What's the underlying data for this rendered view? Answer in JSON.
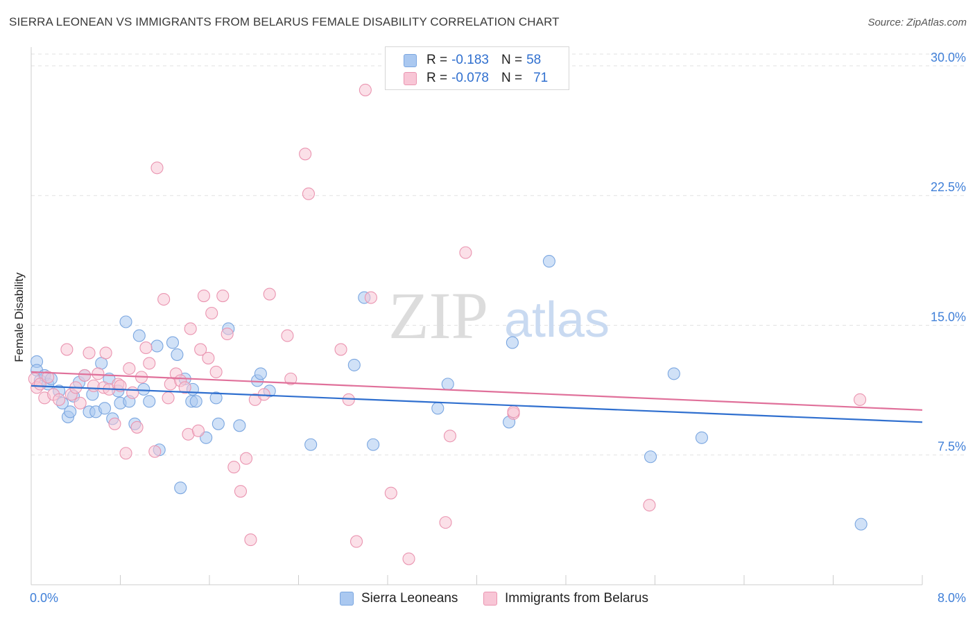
{
  "title": "SIERRA LEONEAN VS IMMIGRANTS FROM BELARUS FEMALE DISABILITY CORRELATION CHART",
  "source": "Source: ZipAtlas.com",
  "watermark": {
    "zip": "ZIP",
    "atlas": "atlas"
  },
  "legend_top": [
    {
      "r_label": "R =",
      "r_value": "-0.183",
      "n_label": "N =",
      "n_value": "58",
      "color": "#aac8f0",
      "border": "#7aa6e0"
    },
    {
      "r_label": "R =",
      "r_value": "-0.078",
      "n_label": "N =",
      "n_value": "71",
      "color": "#f8c6d6",
      "border": "#ea94b0"
    }
  ],
  "chart_data": {
    "type": "scatter",
    "title": "SIERRA LEONEAN VS IMMIGRANTS FROM BELARUS FEMALE DISABILITY CORRELATION CHART",
    "xlabel": "",
    "ylabel": "Female Disability",
    "xlim": [
      0,
      8
    ],
    "ylim": [
      0,
      31
    ],
    "x_tick_labels": [
      "0.0%",
      "8.0%"
    ],
    "y_ticks": [
      7.5,
      15.0,
      22.5,
      30.0
    ],
    "y_tick_labels": [
      "7.5%",
      "15.0%",
      "22.5%",
      "30.0%"
    ],
    "grid": "horizontal dashed",
    "legend_position": "bottom",
    "series": [
      {
        "name": "Sierra Leoneans",
        "color": "#7aa6e0",
        "fill": "#aac8f0",
        "line_color": "#2f6fcf",
        "trend": {
          "x": [
            0,
            8
          ],
          "y": [
            11.5,
            9.4
          ]
        },
        "points": [
          [
            0.05,
            12.9
          ],
          [
            0.05,
            12.4
          ],
          [
            0.08,
            11.8
          ],
          [
            0.12,
            12.1
          ],
          [
            0.15,
            11.6
          ],
          [
            0.18,
            11.9
          ],
          [
            0.25,
            11.2
          ],
          [
            0.28,
            10.5
          ],
          [
            0.33,
            9.7
          ],
          [
            0.35,
            10.0
          ],
          [
            0.38,
            10.9
          ],
          [
            0.43,
            11.7
          ],
          [
            0.48,
            12.1
          ],
          [
            0.52,
            10.0
          ],
          [
            0.55,
            11.0
          ],
          [
            0.58,
            10.0
          ],
          [
            0.63,
            12.8
          ],
          [
            0.66,
            10.2
          ],
          [
            0.7,
            11.9
          ],
          [
            0.73,
            9.6
          ],
          [
            0.78,
            11.2
          ],
          [
            0.8,
            10.5
          ],
          [
            0.85,
            15.2
          ],
          [
            0.88,
            10.6
          ],
          [
            0.93,
            9.3
          ],
          [
            0.97,
            14.4
          ],
          [
            1.01,
            11.3
          ],
          [
            1.06,
            10.6
          ],
          [
            1.13,
            13.8
          ],
          [
            1.15,
            7.8
          ],
          [
            1.27,
            14.0
          ],
          [
            1.31,
            13.3
          ],
          [
            1.34,
            5.6
          ],
          [
            1.38,
            11.9
          ],
          [
            1.44,
            10.6
          ],
          [
            1.45,
            11.3
          ],
          [
            1.48,
            10.6
          ],
          [
            1.57,
            8.5
          ],
          [
            1.66,
            10.8
          ],
          [
            1.68,
            9.3
          ],
          [
            1.77,
            14.8
          ],
          [
            1.87,
            9.2
          ],
          [
            2.03,
            11.8
          ],
          [
            2.06,
            12.2
          ],
          [
            2.14,
            11.2
          ],
          [
            2.51,
            8.1
          ],
          [
            2.9,
            12.7
          ],
          [
            2.99,
            16.6
          ],
          [
            3.07,
            8.1
          ],
          [
            3.65,
            10.2
          ],
          [
            3.74,
            11.6
          ],
          [
            4.29,
            9.4
          ],
          [
            4.32,
            14.0
          ],
          [
            4.65,
            18.7
          ],
          [
            5.56,
            7.4
          ],
          [
            5.77,
            12.2
          ],
          [
            6.02,
            8.5
          ],
          [
            7.45,
            3.5
          ]
        ]
      },
      {
        "name": "Immigrants from Belarus",
        "color": "#ea94b0",
        "fill": "#f8c6d6",
        "line_color": "#e0709a",
        "trend": {
          "x": [
            0,
            8
          ],
          "y": [
            12.3,
            10.1
          ]
        },
        "points": [
          [
            0.03,
            11.9
          ],
          [
            0.05,
            11.4
          ],
          [
            0.08,
            11.6
          ],
          [
            0.12,
            10.8
          ],
          [
            0.15,
            12.0
          ],
          [
            0.2,
            11.0
          ],
          [
            0.25,
            10.7
          ],
          [
            0.32,
            13.6
          ],
          [
            0.36,
            11.0
          ],
          [
            0.4,
            11.4
          ],
          [
            0.44,
            10.5
          ],
          [
            0.48,
            12.1
          ],
          [
            0.52,
            13.4
          ],
          [
            0.56,
            11.5
          ],
          [
            0.6,
            12.2
          ],
          [
            0.65,
            11.4
          ],
          [
            0.67,
            13.4
          ],
          [
            0.7,
            11.3
          ],
          [
            0.75,
            9.3
          ],
          [
            0.78,
            11.6
          ],
          [
            0.8,
            11.5
          ],
          [
            0.85,
            7.6
          ],
          [
            0.88,
            12.5
          ],
          [
            0.91,
            11.1
          ],
          [
            0.95,
            9.1
          ],
          [
            0.99,
            12.0
          ],
          [
            1.03,
            13.7
          ],
          [
            1.06,
            12.8
          ],
          [
            1.11,
            7.7
          ],
          [
            1.13,
            24.1
          ],
          [
            1.19,
            16.5
          ],
          [
            1.23,
            10.8
          ],
          [
            1.25,
            11.6
          ],
          [
            1.3,
            12.2
          ],
          [
            1.34,
            11.8
          ],
          [
            1.38,
            11.4
          ],
          [
            1.41,
            8.7
          ],
          [
            1.43,
            14.8
          ],
          [
            1.5,
            8.9
          ],
          [
            1.52,
            13.6
          ],
          [
            1.55,
            16.7
          ],
          [
            1.59,
            13.1
          ],
          [
            1.62,
            15.7
          ],
          [
            1.66,
            12.3
          ],
          [
            1.72,
            16.7
          ],
          [
            1.76,
            14.5
          ],
          [
            1.82,
            6.8
          ],
          [
            1.88,
            5.4
          ],
          [
            1.93,
            7.3
          ],
          [
            1.97,
            2.6
          ],
          [
            2.01,
            10.7
          ],
          [
            2.09,
            11.0
          ],
          [
            2.14,
            16.8
          ],
          [
            2.3,
            14.4
          ],
          [
            2.33,
            11.9
          ],
          [
            2.46,
            24.9
          ],
          [
            2.49,
            22.6
          ],
          [
            2.78,
            13.6
          ],
          [
            2.85,
            10.7
          ],
          [
            2.92,
            2.5
          ],
          [
            3.05,
            16.6
          ],
          [
            3.0,
            28.6
          ],
          [
            3.23,
            5.3
          ],
          [
            3.39,
            1.5
          ],
          [
            3.72,
            3.6
          ],
          [
            3.76,
            8.6
          ],
          [
            3.9,
            19.2
          ],
          [
            4.33,
            9.9
          ],
          [
            4.33,
            10.0
          ],
          [
            5.55,
            4.6
          ],
          [
            7.44,
            10.7
          ]
        ]
      }
    ]
  }
}
